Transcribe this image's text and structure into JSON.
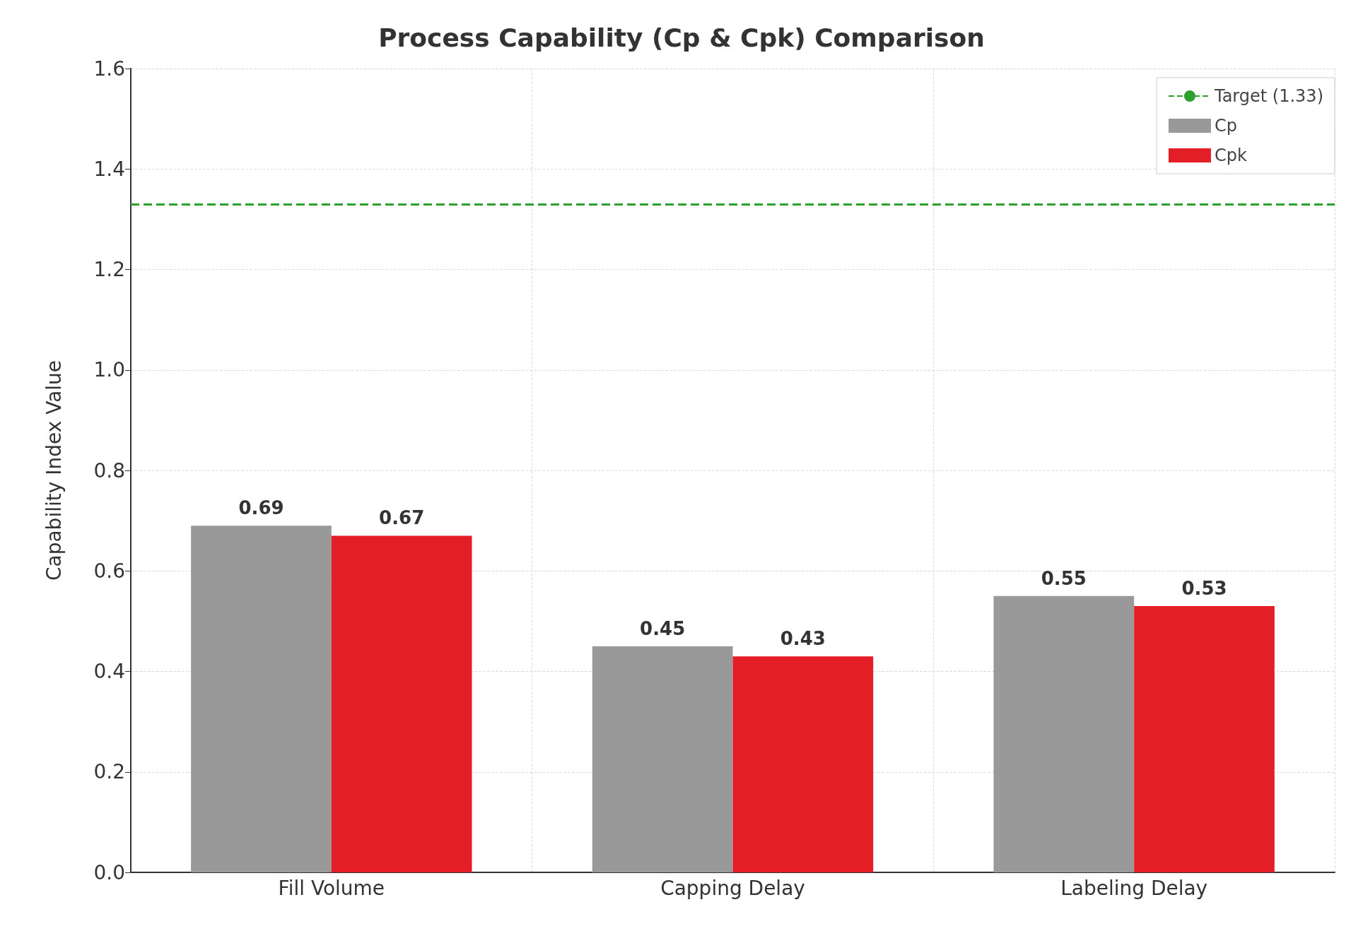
{
  "chart_data": {
    "type": "bar",
    "title": "Process Capability (Cp & Cpk) Comparison",
    "ylabel": "Capability Index Value",
    "categories": [
      "Fill Volume",
      "Capping Delay",
      "Labeling Delay"
    ],
    "series": [
      {
        "name": "Cp",
        "color": "#999999",
        "values": [
          0.69,
          0.45,
          0.55
        ]
      },
      {
        "name": "Cpk",
        "color": "#e31e27",
        "values": [
          0.67,
          0.43,
          0.53
        ]
      }
    ],
    "ylim": [
      0,
      1.6
    ],
    "yticks": [
      {
        "value": 0,
        "label": "0.0"
      },
      {
        "value": 0.2,
        "label": "0.2"
      },
      {
        "value": 0.4,
        "label": "0.4"
      },
      {
        "value": 0.6,
        "label": "0.6"
      },
      {
        "value": 0.8,
        "label": "0.8"
      },
      {
        "value": 1.0,
        "label": "1.0"
      },
      {
        "value": 1.2,
        "label": "1.2"
      },
      {
        "value": 1.4,
        "label": "1.4"
      },
      {
        "value": 1.6,
        "label": "1.6"
      }
    ],
    "ref_lines": [
      {
        "axis": "y",
        "value": 1.33,
        "label": "Target (1.33)",
        "color": "#2ca02c",
        "line_style": "dashed"
      }
    ],
    "data_labels": true,
    "grid": true,
    "legend": "top right"
  }
}
